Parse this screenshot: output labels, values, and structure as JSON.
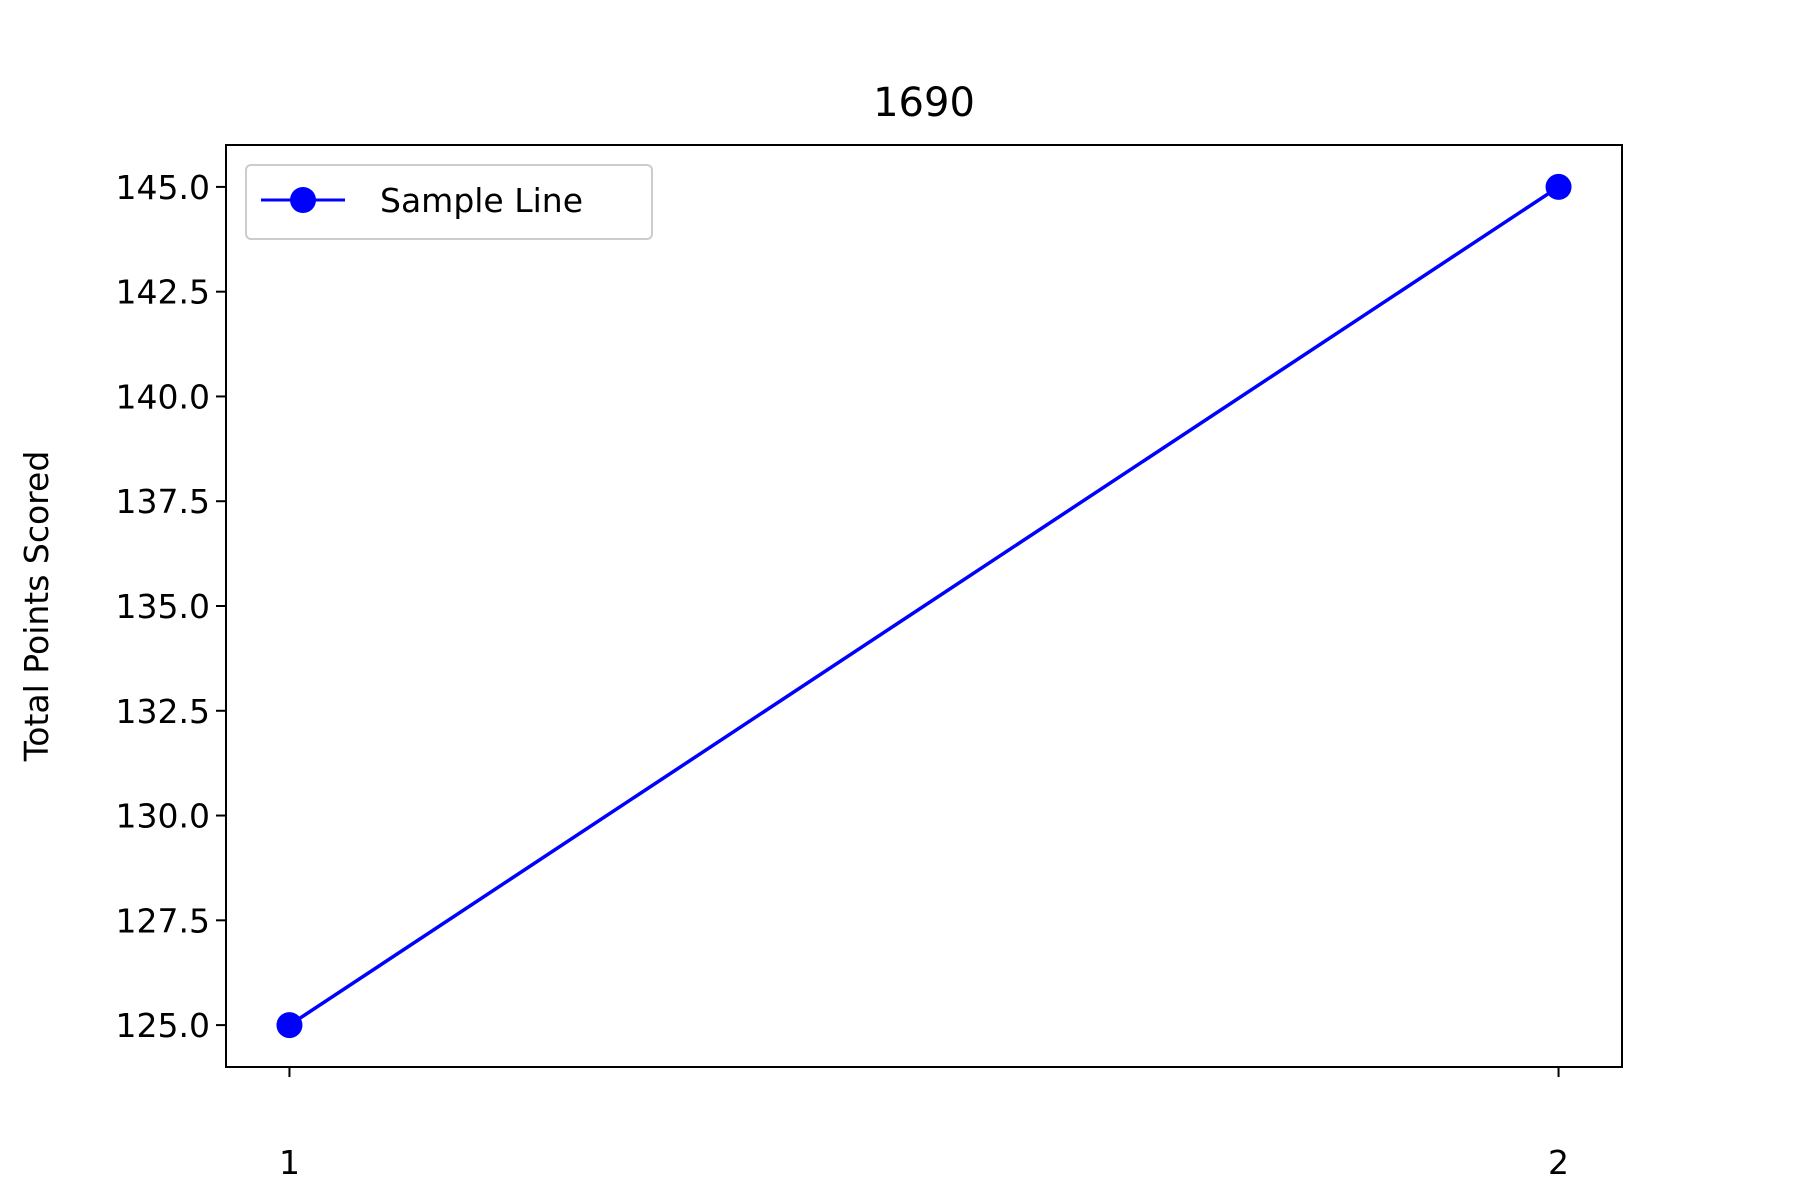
{
  "chart_data": {
    "type": "line",
    "title": "1690",
    "xlabel": "",
    "ylabel": "Total Points Scored",
    "x": [
      1,
      2
    ],
    "x_tick_labels": [
      "1",
      "2"
    ],
    "xlim": [
      0.95,
      2.05
    ],
    "ylim": [
      124.0,
      146.0
    ],
    "y_ticks": [
      125.0,
      127.5,
      130.0,
      132.5,
      135.0,
      137.5,
      140.0,
      142.5,
      145.0
    ],
    "y_tick_labels": [
      "125.0",
      "127.5",
      "130.0",
      "132.5",
      "135.0",
      "137.5",
      "140.0",
      "142.5",
      "145.0"
    ],
    "series": [
      {
        "name": "Sample Line",
        "values": [
          125,
          145
        ],
        "color": "#0000ff",
        "marker": "circle"
      }
    ],
    "legend": {
      "position": "top-left",
      "labels": [
        "Sample Line"
      ]
    },
    "grid": false
  }
}
